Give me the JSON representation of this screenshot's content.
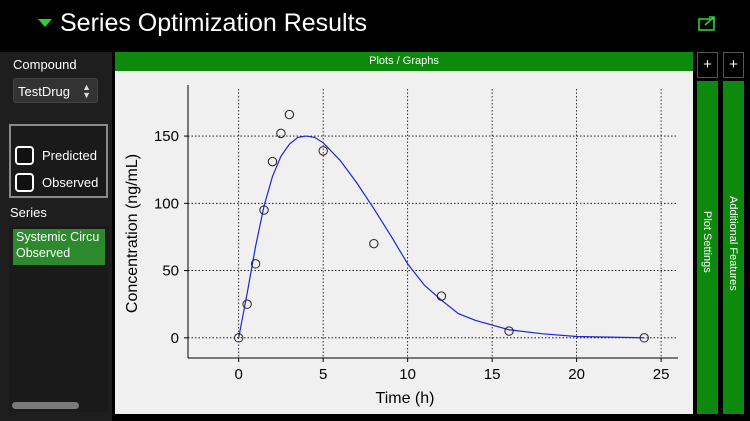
{
  "window": {
    "title": "Series Optimization Results",
    "export_icon": "export-icon"
  },
  "compound": {
    "label": "Compound",
    "selected": "TestDrug"
  },
  "checkboxes": [
    {
      "label": "Predicted",
      "checked": false
    },
    {
      "label": "Observed",
      "checked": false
    }
  ],
  "series": {
    "label": "Series",
    "items": [
      {
        "line1": "Systemic Circu",
        "line2": "Observed"
      }
    ]
  },
  "plot_panel": {
    "header": "Plots / Graphs"
  },
  "side_tabs": [
    {
      "plus": "+",
      "label": "Plot Settings"
    },
    {
      "plus": "+",
      "label": "Additional Features"
    }
  ],
  "colors": {
    "accent_green": "#0d8a0d",
    "title_arrow": "#2ed12e",
    "line_color": "#2222dd"
  },
  "chart_data": {
    "type": "scatter",
    "title": "",
    "xlabel": "Time (h)",
    "ylabel": "Concentration (ng/mL)",
    "xlim": [
      -3,
      26
    ],
    "ylim": [
      -15,
      185
    ],
    "xticks": [
      0,
      5,
      10,
      15,
      20,
      25
    ],
    "yticks": [
      0,
      50,
      100,
      150
    ],
    "grid": true,
    "series": [
      {
        "kind": "points",
        "x": [
          0,
          0.5,
          1,
          1.5,
          2,
          2.5,
          3,
          5,
          8,
          12,
          16,
          24
        ],
        "y": [
          0,
          25,
          55,
          95,
          131,
          152,
          166,
          139,
          70,
          31,
          5,
          0
        ]
      },
      {
        "kind": "line",
        "x": [
          0,
          0.5,
          1,
          1.5,
          2,
          2.5,
          3,
          3.5,
          4,
          4.5,
          5,
          6,
          7,
          8,
          9,
          10,
          11,
          12,
          13,
          14,
          16,
          18,
          20,
          24
        ],
        "y": [
          0,
          33,
          68,
          98,
          120,
          135,
          144,
          149,
          150,
          149,
          145,
          132,
          115,
          96,
          76,
          55,
          39,
          28,
          18,
          13,
          6,
          3,
          1,
          0
        ]
      }
    ]
  }
}
